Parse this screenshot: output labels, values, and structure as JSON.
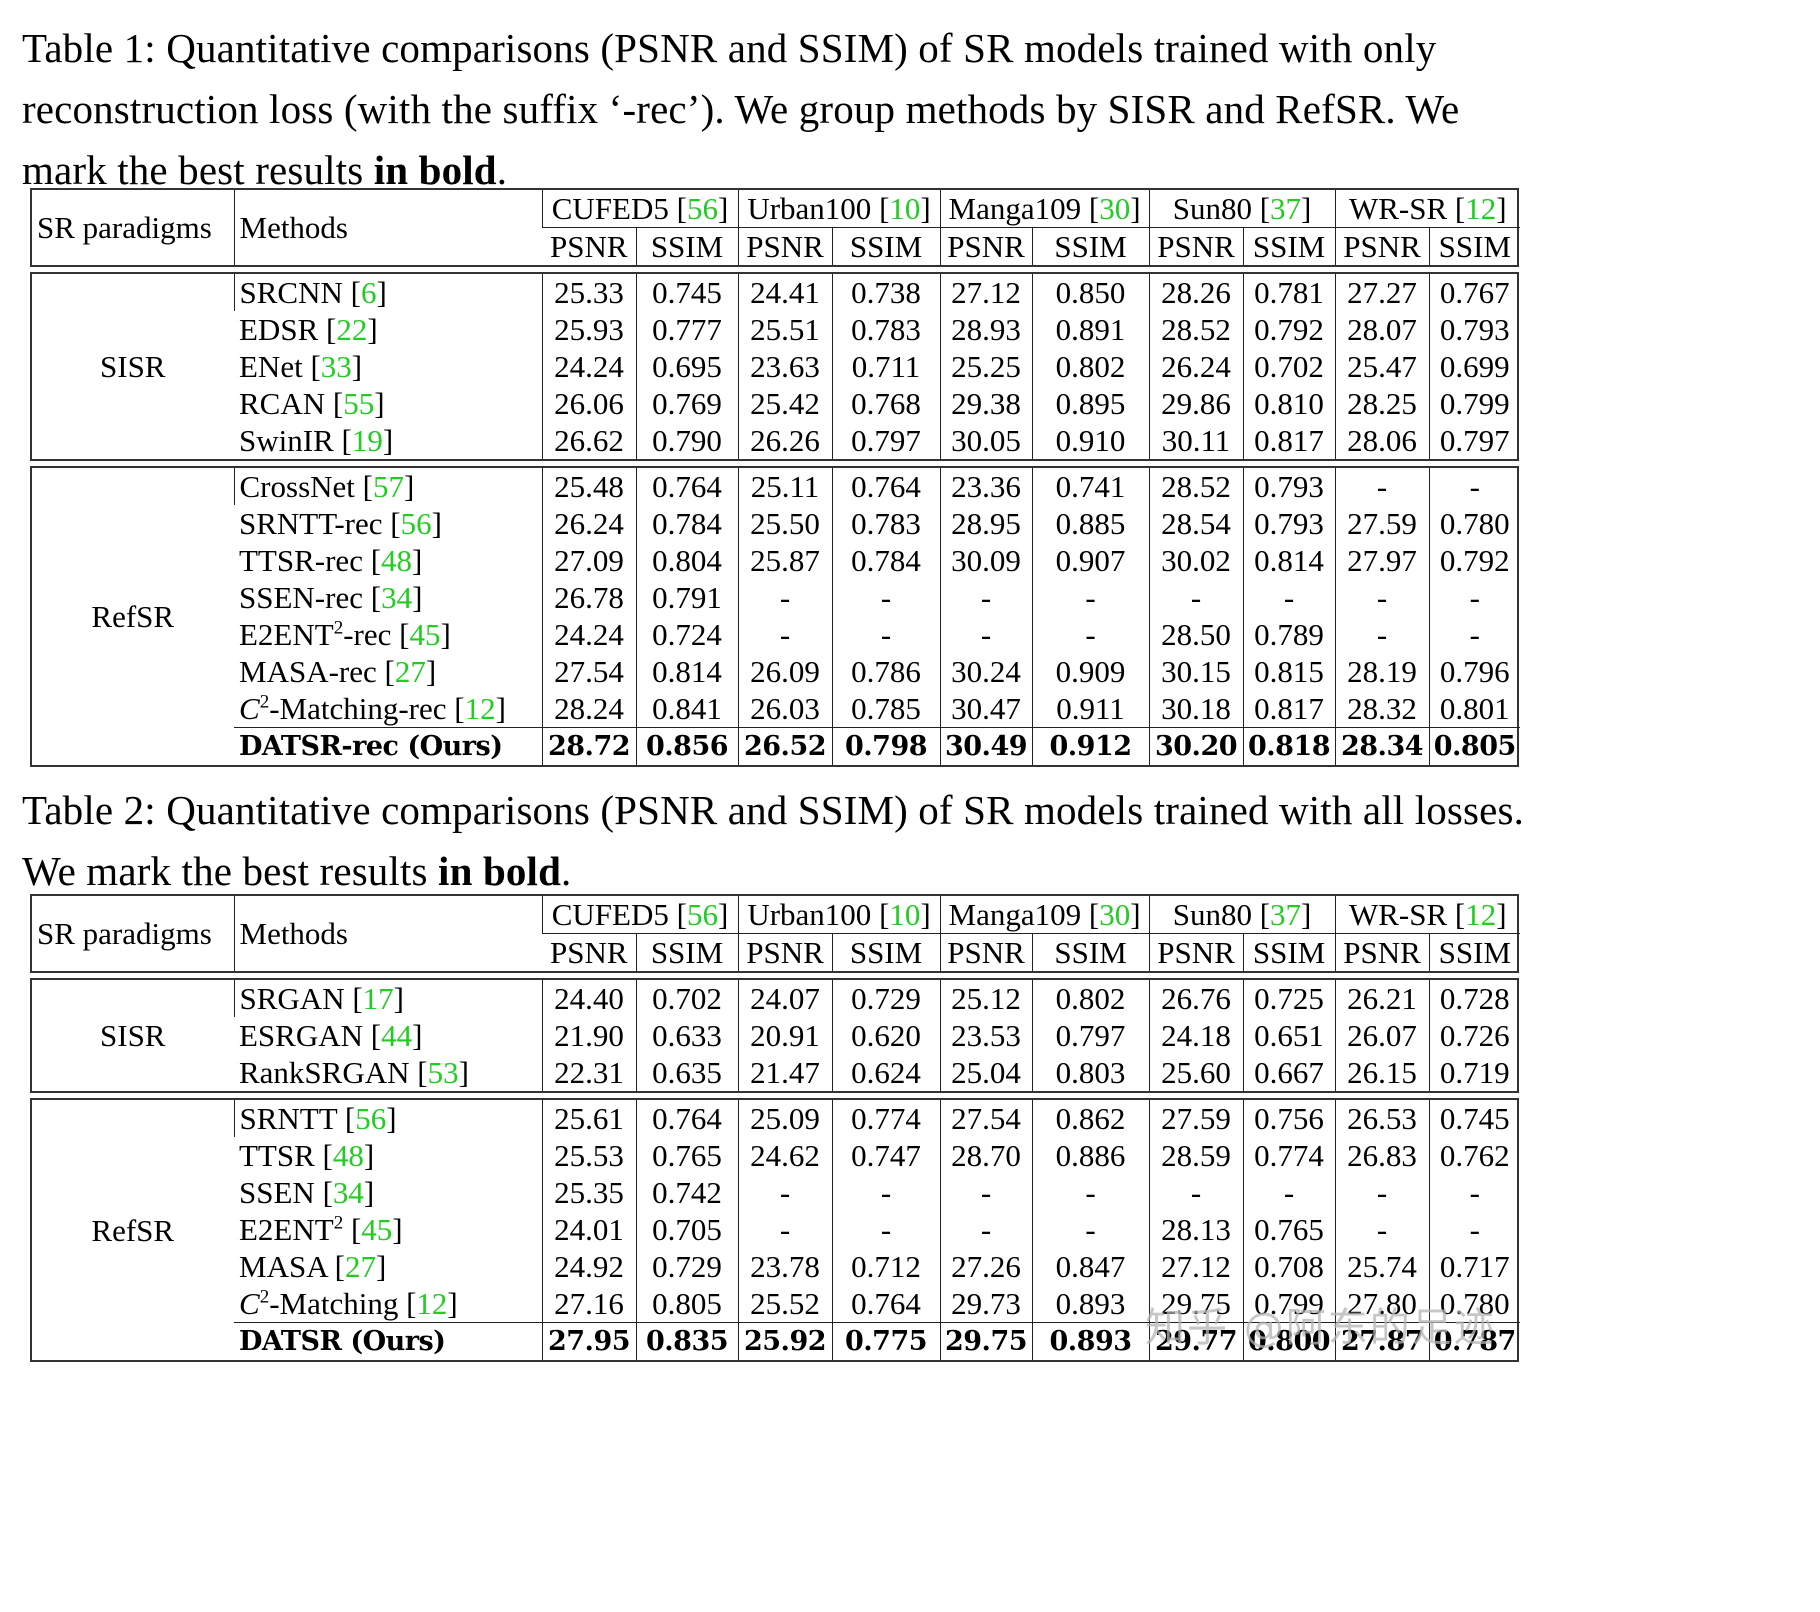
{
  "columns": {
    "paradigm_header": "SR paradigms",
    "methods_header": "Methods",
    "datasets": [
      {
        "name": "CUFED5",
        "cite": "56"
      },
      {
        "name": "Urban100",
        "cite": "10"
      },
      {
        "name": "Manga109",
        "cite": "30"
      },
      {
        "name": "Sun80",
        "cite": "37"
      },
      {
        "name": "WR-SR",
        "cite": "12"
      }
    ],
    "metrics": [
      "PSNR",
      "SSIM"
    ]
  },
  "table1": {
    "caption_prefix": "Table 1: Quantitative comparisons (PSNR and SSIM) of SR models trained with only reconstruction loss (with the suffix ‘-rec’). We group methods by SISR and RefSR. We mark the best results ",
    "caption_bold": "in bold",
    "caption_suffix": ".",
    "groups": [
      {
        "paradigm": "SISR",
        "rows": [
          {
            "method": "SRCNN",
            "cite": "6",
            "values": [
              "25.33",
              "0.745",
              "24.41",
              "0.738",
              "27.12",
              "0.850",
              "28.26",
              "0.781",
              "27.27",
              "0.767"
            ]
          },
          {
            "method": "EDSR",
            "cite": "22",
            "values": [
              "25.93",
              "0.777",
              "25.51",
              "0.783",
              "28.93",
              "0.891",
              "28.52",
              "0.792",
              "28.07",
              "0.793"
            ]
          },
          {
            "method": "ENet",
            "cite": "33",
            "values": [
              "24.24",
              "0.695",
              "23.63",
              "0.711",
              "25.25",
              "0.802",
              "26.24",
              "0.702",
              "25.47",
              "0.699"
            ]
          },
          {
            "method": "RCAN",
            "cite": "55",
            "values": [
              "26.06",
              "0.769",
              "25.42",
              "0.768",
              "29.38",
              "0.895",
              "29.86",
              "0.810",
              "28.25",
              "0.799"
            ]
          },
          {
            "method": "SwinIR",
            "cite": "19",
            "values": [
              "26.62",
              "0.790",
              "26.26",
              "0.797",
              "30.05",
              "0.910",
              "30.11",
              "0.817",
              "28.06",
              "0.797"
            ]
          }
        ]
      },
      {
        "paradigm": "RefSR",
        "rows": [
          {
            "method": "CrossNet",
            "cite": "57",
            "values": [
              "25.48",
              "0.764",
              "25.11",
              "0.764",
              "23.36",
              "0.741",
              "28.52",
              "0.793",
              "-",
              "-"
            ]
          },
          {
            "method": "SRNTT-rec",
            "cite": "56",
            "values": [
              "26.24",
              "0.784",
              "25.50",
              "0.783",
              "28.95",
              "0.885",
              "28.54",
              "0.793",
              "27.59",
              "0.780"
            ]
          },
          {
            "method": "TTSR-rec",
            "cite": "48",
            "values": [
              "27.09",
              "0.804",
              "25.87",
              "0.784",
              "30.09",
              "0.907",
              "30.02",
              "0.814",
              "27.97",
              "0.792"
            ]
          },
          {
            "method": "SSEN-rec",
            "cite": "34",
            "values": [
              "26.78",
              "0.791",
              "-",
              "-",
              "-",
              "-",
              "-",
              "-",
              "-",
              "-"
            ]
          },
          {
            "method": "E2ENT",
            "sup": "2",
            "method_suffix": "-rec",
            "cite": "45",
            "values": [
              "24.24",
              "0.724",
              "-",
              "-",
              "-",
              "-",
              "28.50",
              "0.789",
              "-",
              "-"
            ]
          },
          {
            "method": "MASA-rec",
            "cite": "27",
            "values": [
              "27.54",
              "0.814",
              "26.09",
              "0.786",
              "30.24",
              "0.909",
              "30.15",
              "0.815",
              "28.19",
              "0.796"
            ]
          },
          {
            "method_italic": "C",
            "sup": "2",
            "method_suffix": "-Matching-rec",
            "cite": "12",
            "values": [
              "28.24",
              "0.841",
              "26.03",
              "0.785",
              "30.47",
              "0.911",
              "30.18",
              "0.817",
              "28.32",
              "0.801"
            ]
          }
        ],
        "best": {
          "method": "DATSR-rec (Ours)",
          "values": [
            "28.72",
            "0.856",
            "26.52",
            "0.798",
            "30.49",
            "0.912",
            "30.20",
            "0.818",
            "28.34",
            "0.805"
          ]
        }
      }
    ]
  },
  "table2": {
    "caption_prefix": "Table 2: Quantitative comparisons (PSNR and SSIM) of SR models trained with all losses. We mark the best results ",
    "caption_bold": "in bold",
    "caption_suffix": ".",
    "groups": [
      {
        "paradigm": "SISR",
        "rows": [
          {
            "method": "SRGAN",
            "cite": "17",
            "values": [
              "24.40",
              "0.702",
              "24.07",
              "0.729",
              "25.12",
              "0.802",
              "26.76",
              "0.725",
              "26.21",
              "0.728"
            ]
          },
          {
            "method": "ESRGAN",
            "cite": "44",
            "values": [
              "21.90",
              "0.633",
              "20.91",
              "0.620",
              "23.53",
              "0.797",
              "24.18",
              "0.651",
              "26.07",
              "0.726"
            ]
          },
          {
            "method": "RankSRGAN",
            "cite": "53",
            "values": [
              "22.31",
              "0.635",
              "21.47",
              "0.624",
              "25.04",
              "0.803",
              "25.60",
              "0.667",
              "26.15",
              "0.719"
            ]
          }
        ]
      },
      {
        "paradigm": "RefSR",
        "rows": [
          {
            "method": "SRNTT",
            "cite": "56",
            "values": [
              "25.61",
              "0.764",
              "25.09",
              "0.774",
              "27.54",
              "0.862",
              "27.59",
              "0.756",
              "26.53",
              "0.745"
            ]
          },
          {
            "method": "TTSR",
            "cite": "48",
            "values": [
              "25.53",
              "0.765",
              "24.62",
              "0.747",
              "28.70",
              "0.886",
              "28.59",
              "0.774",
              "26.83",
              "0.762"
            ]
          },
          {
            "method": "SSEN",
            "cite": "34",
            "values": [
              "25.35",
              "0.742",
              "-",
              "-",
              "-",
              "-",
              "-",
              "-",
              "-",
              "-"
            ]
          },
          {
            "method": "E2ENT",
            "sup": "2",
            "method_suffix": " ",
            "cite": "45",
            "values": [
              "24.01",
              "0.705",
              "-",
              "-",
              "-",
              "-",
              "28.13",
              "0.765",
              "-",
              "-"
            ]
          },
          {
            "method": "MASA",
            "cite": "27",
            "values": [
              "24.92",
              "0.729",
              "23.78",
              "0.712",
              "27.26",
              "0.847",
              "27.12",
              "0.708",
              "25.74",
              "0.717"
            ]
          },
          {
            "method_italic": "C",
            "sup": "2",
            "method_suffix": "-Matching",
            "cite": "12",
            "values": [
              "27.16",
              "0.805",
              "25.52",
              "0.764",
              "29.73",
              "0.893",
              "29.75",
              "0.799",
              "27.80",
              "0.780"
            ]
          }
        ],
        "best": {
          "method": "DATSR (Ours)",
          "values": [
            "27.95",
            "0.835",
            "25.92",
            "0.775",
            "29.75",
            "0.893",
            "29.77",
            "0.800",
            "27.87",
            "0.787"
          ]
        }
      }
    ]
  },
  "watermark": "知乎 @阿东的足迹",
  "colors": {
    "citation": "#22cc22",
    "rule": "#222222"
  }
}
